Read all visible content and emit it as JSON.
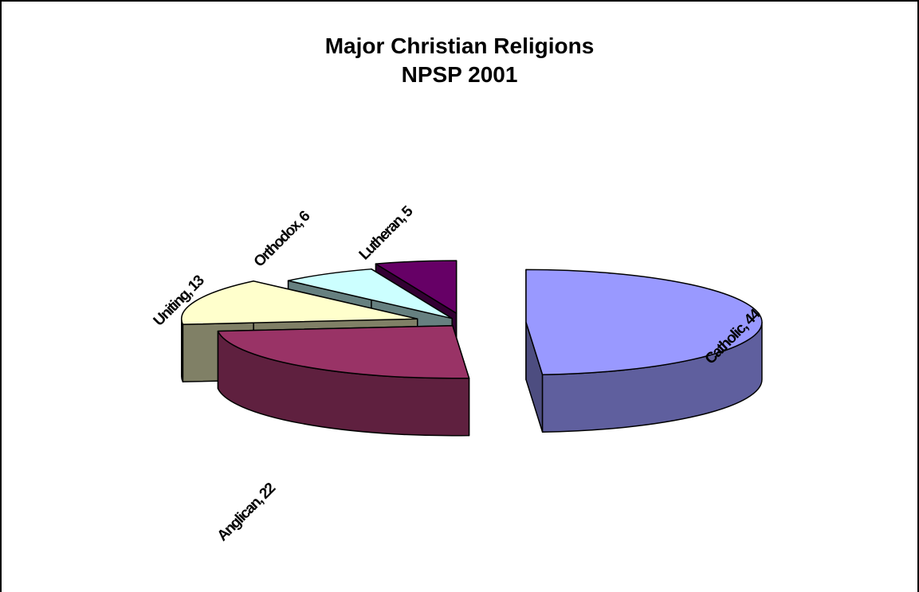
{
  "chart_data": {
    "type": "pie",
    "title": "Major Christian Religions",
    "subtitle": "NPSP 2001",
    "style": "3d-exploded",
    "slices": [
      {
        "label": "Catholic",
        "value": 44,
        "color": "#9999ff",
        "text": "Catholic, 44"
      },
      {
        "label": "Anglican",
        "value": 22,
        "color": "#993366",
        "text": "Anglican, 22"
      },
      {
        "label": "Uniting",
        "value": 13,
        "color": "#ffffcc",
        "text": "Uniting, 13"
      },
      {
        "label": "Orthodox",
        "value": 6,
        "color": "#ccffff",
        "text": "Orthodox, 6"
      },
      {
        "label": "Lutheran",
        "value": 5,
        "color": "#660066",
        "text": "Lutheran, 5"
      }
    ]
  }
}
